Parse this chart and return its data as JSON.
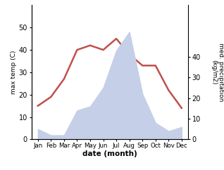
{
  "months": [
    "Jan",
    "Feb",
    "Mar",
    "Apr",
    "May",
    "Jun",
    "Jul",
    "Aug",
    "Sep",
    "Oct",
    "Nov",
    "Dec"
  ],
  "month_x": [
    1,
    2,
    3,
    4,
    5,
    6,
    7,
    8,
    9,
    10,
    11,
    12
  ],
  "temperature": [
    15,
    19,
    27,
    40,
    42,
    40,
    45,
    38,
    33,
    33,
    22,
    14
  ],
  "precipitation": [
    5,
    2,
    2,
    14,
    16,
    25,
    43,
    52,
    22,
    8,
    4,
    6
  ],
  "temp_color": "#c0504d",
  "precip_fill_color": "#c5cfe8",
  "temp_ylim": [
    0,
    60
  ],
  "precip_ylim": [
    0,
    65
  ],
  "temp_yticks": [
    0,
    10,
    20,
    30,
    40,
    50
  ],
  "precip_yticks": [
    0,
    10,
    20,
    30,
    40
  ],
  "xlabel": "date (month)",
  "ylabel_left": "max temp (C)",
  "ylabel_right": "med. precipitation\n(kg/m2)",
  "background_color": "#ffffff",
  "line_width": 1.8
}
